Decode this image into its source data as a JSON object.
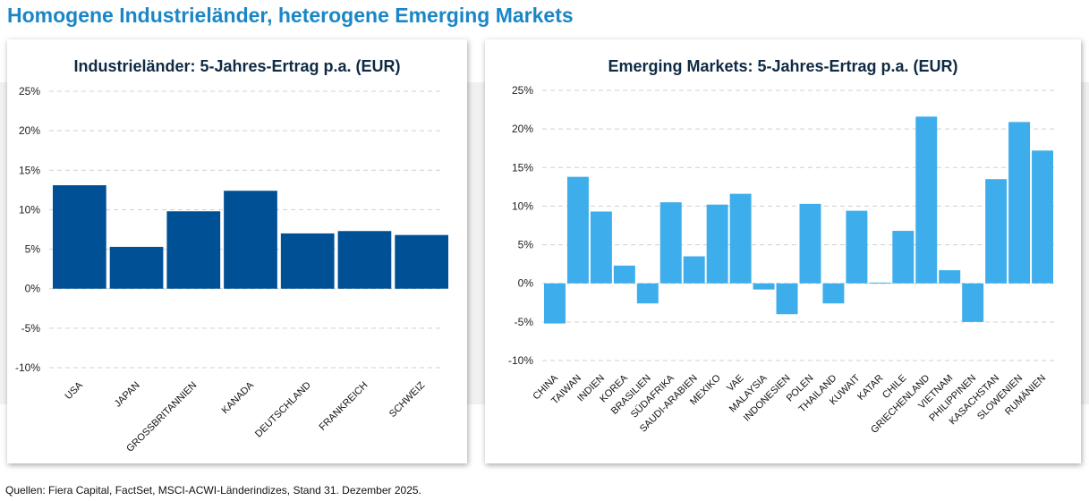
{
  "title": "Homogene Industrieländer, heterogene Emerging Markets",
  "source": "Quellen: Fiera Capital, FactSet, MSCI-ACWI-Länderindizes, Stand 31. Dezember 2025.",
  "chart_data": [
    {
      "type": "bar",
      "title": "Industrieländer: 5-Jahres-Ertrag p.a. (EUR)",
      "categories": [
        "USA",
        "JAPAN",
        "GROSSBRITANNIEN",
        "KANADA",
        "DEUTSCHLAND",
        "FRANKREICH",
        "SCHWEIZ"
      ],
      "values": [
        13.1,
        5.3,
        9.8,
        12.4,
        7.0,
        7.3,
        6.8
      ],
      "ylim": [
        -10,
        25
      ],
      "yticks": [
        "25%",
        "20%",
        "15%",
        "10%",
        "5%",
        "0%",
        "-5%",
        "-10%"
      ],
      "grid": true,
      "color": "#005096"
    },
    {
      "type": "bar",
      "title": "Emerging Markets: 5-Jahres-Ertrag p.a. (EUR)",
      "categories": [
        "CHINA",
        "TAIWAN",
        "INDIEN",
        "KOREA",
        "BRASILIEN",
        "SÜDAFRIKA",
        "SAUDI-ARABIEN",
        "MEXIKO",
        "VAE",
        "MALAYSIA",
        "INDONESIEN",
        "POLEN",
        "THAILAND",
        "KUWAIT",
        "KATAR",
        "CHILE",
        "GRIECHENLAND",
        "VIETNAM",
        "PHILIPPINEN",
        "KASACHSTAN",
        "SLOWENIEN",
        "RUMÄNIEN"
      ],
      "values": [
        -5.2,
        13.8,
        9.3,
        2.3,
        -2.6,
        10.5,
        3.5,
        10.2,
        11.6,
        -0.8,
        -4.0,
        10.3,
        -2.6,
        9.4,
        0.1,
        6.8,
        21.6,
        1.7,
        -5.0,
        13.5,
        20.9,
        17.2
      ],
      "ylim": [
        -10,
        25
      ],
      "yticks": [
        "25%",
        "20%",
        "15%",
        "10%",
        "5%",
        "0%",
        "-5%",
        "-10%"
      ],
      "grid": true,
      "color": "#3daeeb"
    }
  ]
}
